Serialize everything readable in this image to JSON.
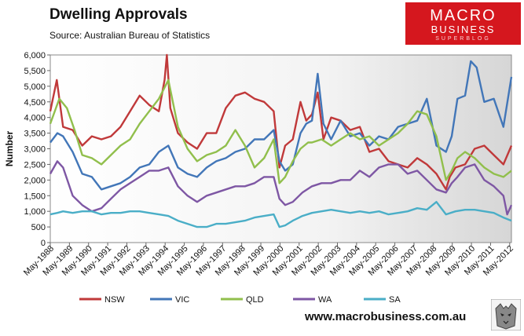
{
  "header": {
    "title": "Dwelling Approvals",
    "source": "Source:   Australian Bureau of Statistics"
  },
  "logo": {
    "line1": "MACRO",
    "line2": "BUSINESS",
    "line3": "SUPERBLOG",
    "color": "#d5171e"
  },
  "footer": {
    "url": "www.macrobusiness.com.au",
    "logo_icon": "wolf-emblem-icon"
  },
  "chart_data": {
    "type": "line",
    "title": "Dwelling Approvals",
    "xlabel": "",
    "ylabel": "Number",
    "ylim": [
      0,
      6000
    ],
    "yticks": [
      0,
      500,
      1000,
      1500,
      2000,
      2500,
      3000,
      3500,
      4000,
      4500,
      5000,
      5500,
      6000
    ],
    "ytick_labels": [
      "0",
      "500",
      "1,000",
      "1,500",
      "2,000",
      "2,500",
      "3,000",
      "3,500",
      "4,000",
      "4,500",
      "5,000",
      "5,500",
      "6,000"
    ],
    "xlim": [
      1988.33,
      2012.42
    ],
    "x_tick_labels": [
      "May-1988",
      "May-1989",
      "May-1990",
      "May-1991",
      "May-1992",
      "May-1993",
      "May-1994",
      "May-1995",
      "May-1996",
      "May-1997",
      "May-1998",
      "May-1999",
      "May-2000",
      "May-2001",
      "May-2002",
      "May-2003",
      "May-2004",
      "May-2005",
      "May-2006",
      "May-2007",
      "May-2008",
      "May-2009",
      "May-2010",
      "May-2011",
      "May-2012"
    ],
    "x_tick_years": [
      1988.33,
      1989.33,
      1990.33,
      1991.33,
      1992.33,
      1993.33,
      1994.33,
      1995.33,
      1996.33,
      1997.33,
      1998.33,
      1999.33,
      2000.33,
      2001.33,
      2002.33,
      2003.33,
      2004.33,
      2005.33,
      2006.33,
      2007.33,
      2008.33,
      2009.33,
      2010.33,
      2011.33,
      2012.33
    ],
    "legend_position": "bottom",
    "series": [
      {
        "name": "NSW",
        "color": "#c0393a",
        "x": [
          1988.33,
          1988.67,
          1989.0,
          1989.5,
          1990.0,
          1990.5,
          1991.0,
          1991.5,
          1992.0,
          1992.5,
          1993.0,
          1993.5,
          1994.0,
          1994.3,
          1994.42,
          1994.6,
          1995.0,
          1995.5,
          1996.0,
          1996.5,
          1997.0,
          1997.5,
          1998.0,
          1998.5,
          1999.0,
          1999.5,
          2000.0,
          2000.3,
          2000.6,
          2001.0,
          2001.4,
          2001.7,
          2002.0,
          2002.3,
          2002.6,
          2003.0,
          2003.5,
          2004.0,
          2004.5,
          2005.0,
          2005.5,
          2006.0,
          2006.5,
          2007.0,
          2007.5,
          2008.0,
          2008.5,
          2009.0,
          2009.2,
          2009.5,
          2010.0,
          2010.5,
          2011.0,
          2011.5,
          2012.0,
          2012.42
        ],
        "values": [
          4200,
          5200,
          3700,
          3600,
          3100,
          3400,
          3300,
          3400,
          3700,
          4200,
          4700,
          4400,
          4200,
          5200,
          6000,
          4300,
          3500,
          3200,
          3000,
          3500,
          3500,
          4300,
          4700,
          4800,
          4600,
          4500,
          4200,
          2400,
          3100,
          3300,
          4500,
          3900,
          4100,
          4800,
          3300,
          4000,
          3900,
          3600,
          3700,
          2900,
          3000,
          2600,
          2500,
          2400,
          2700,
          2500,
          2200,
          1700,
          2100,
          2400,
          2500,
          3000,
          3100,
          2800,
          2500,
          3100
        ]
      },
      {
        "name": "VIC",
        "color": "#4276b8",
        "x": [
          1988.33,
          1988.7,
          1989.0,
          1989.5,
          1990.0,
          1990.5,
          1991.0,
          1991.5,
          1992.0,
          1992.5,
          1993.0,
          1993.5,
          1994.0,
          1994.5,
          1995.0,
          1995.5,
          1996.0,
          1996.5,
          1997.0,
          1997.5,
          1998.0,
          1998.5,
          1999.0,
          1999.5,
          2000.0,
          2000.3,
          2000.6,
          2001.0,
          2001.4,
          2001.7,
          2002.0,
          2002.3,
          2002.6,
          2003.0,
          2003.5,
          2004.0,
          2004.5,
          2005.0,
          2005.5,
          2006.0,
          2006.5,
          2007.0,
          2007.5,
          2008.0,
          2008.5,
          2009.0,
          2009.3,
          2009.6,
          2010.0,
          2010.3,
          2010.6,
          2011.0,
          2011.5,
          2012.0,
          2012.42
        ],
        "values": [
          3200,
          3500,
          3400,
          2900,
          2200,
          2100,
          1700,
          1800,
          1900,
          2100,
          2400,
          2500,
          2900,
          3100,
          2400,
          2200,
          2100,
          2400,
          2600,
          2700,
          2900,
          3000,
          3300,
          3300,
          3600,
          2600,
          2300,
          2500,
          3500,
          3800,
          3900,
          5400,
          3800,
          3300,
          3900,
          3400,
          3500,
          3100,
          3400,
          3300,
          3700,
          3800,
          3900,
          4600,
          3100,
          2900,
          3400,
          4600,
          4700,
          5800,
          5600,
          4500,
          4600,
          3700,
          5300
        ]
      },
      {
        "name": "QLD",
        "color": "#91bf4c",
        "x": [
          1988.33,
          1988.8,
          1989.2,
          1989.6,
          1990.0,
          1990.5,
          1991.0,
          1991.5,
          1992.0,
          1992.5,
          1993.0,
          1993.5,
          1994.0,
          1994.5,
          1995.0,
          1995.5,
          1996.0,
          1996.5,
          1997.0,
          1997.5,
          1998.0,
          1998.5,
          1999.0,
          1999.5,
          2000.0,
          2000.3,
          2000.6,
          2001.0,
          2001.4,
          2001.8,
          2002.0,
          2002.5,
          2003.0,
          2003.5,
          2004.0,
          2004.5,
          2005.0,
          2005.5,
          2006.0,
          2006.5,
          2007.0,
          2007.5,
          2008.0,
          2008.5,
          2009.0,
          2009.3,
          2009.6,
          2010.0,
          2010.5,
          2011.0,
          2011.5,
          2012.0,
          2012.42
        ],
        "values": [
          3800,
          4600,
          4300,
          3600,
          2800,
          2700,
          2500,
          2800,
          3100,
          3300,
          3800,
          4200,
          4600,
          5200,
          3700,
          3000,
          2600,
          2800,
          2900,
          3100,
          3600,
          3100,
          2400,
          2700,
          3300,
          1900,
          2100,
          2600,
          3000,
          3200,
          3200,
          3300,
          3100,
          3300,
          3500,
          3300,
          3400,
          3100,
          3300,
          3500,
          3800,
          4200,
          4100,
          3400,
          2000,
          2300,
          2700,
          2900,
          2700,
          2400,
          2200,
          2100,
          2300
        ]
      },
      {
        "name": "WA",
        "color": "#7e57a4",
        "x": [
          1988.33,
          1988.7,
          1989.0,
          1989.5,
          1990.0,
          1990.5,
          1991.0,
          1991.5,
          1992.0,
          1992.5,
          1993.0,
          1993.5,
          1994.0,
          1994.5,
          1995.0,
          1995.5,
          1996.0,
          1996.5,
          1997.0,
          1997.5,
          1998.0,
          1998.5,
          1999.0,
          1999.5,
          2000.0,
          2000.3,
          2000.6,
          2001.0,
          2001.5,
          2002.0,
          2002.5,
          2003.0,
          2003.5,
          2004.0,
          2004.5,
          2005.0,
          2005.5,
          2006.0,
          2006.5,
          2007.0,
          2007.5,
          2008.0,
          2008.5,
          2009.0,
          2009.3,
          2009.6,
          2010.0,
          2010.5,
          2011.0,
          2011.5,
          2012.0,
          2012.2,
          2012.42
        ],
        "values": [
          2200,
          2600,
          2400,
          1500,
          1200,
          1000,
          1100,
          1400,
          1700,
          1900,
          2100,
          2300,
          2300,
          2400,
          1800,
          1500,
          1300,
          1500,
          1600,
          1700,
          1800,
          1800,
          1900,
          2100,
          2100,
          1400,
          1200,
          1300,
          1600,
          1800,
          1900,
          1900,
          2000,
          2000,
          2300,
          2100,
          2400,
          2500,
          2500,
          2200,
          2300,
          2000,
          1700,
          1600,
          1900,
          2100,
          2400,
          2500,
          2000,
          1800,
          1500,
          900,
          1200
        ]
      },
      {
        "name": "SA",
        "color": "#4aaec7",
        "x": [
          1988.33,
          1988.7,
          1989.0,
          1989.5,
          1990.0,
          1990.5,
          1991.0,
          1991.5,
          1992.0,
          1992.5,
          1993.0,
          1993.5,
          1994.0,
          1994.5,
          1995.0,
          1995.5,
          1996.0,
          1996.5,
          1997.0,
          1997.5,
          1998.0,
          1998.5,
          1999.0,
          1999.5,
          2000.0,
          2000.3,
          2000.6,
          2001.0,
          2001.5,
          2002.0,
          2002.5,
          2003.0,
          2003.5,
          2004.0,
          2004.5,
          2005.0,
          2005.5,
          2006.0,
          2006.5,
          2007.0,
          2007.5,
          2008.0,
          2008.5,
          2009.0,
          2009.5,
          2010.0,
          2010.5,
          2011.0,
          2011.5,
          2012.0,
          2012.42
        ],
        "values": [
          900,
          950,
          1000,
          950,
          1000,
          1000,
          900,
          950,
          950,
          1000,
          1000,
          950,
          900,
          850,
          700,
          600,
          500,
          500,
          600,
          600,
          650,
          700,
          800,
          850,
          900,
          500,
          550,
          700,
          850,
          950,
          1000,
          1050,
          1000,
          950,
          1000,
          950,
          1000,
          900,
          950,
          1000,
          1100,
          1050,
          1300,
          900,
          1000,
          1050,
          1050,
          1000,
          950,
          800,
          700
        ]
      }
    ]
  }
}
